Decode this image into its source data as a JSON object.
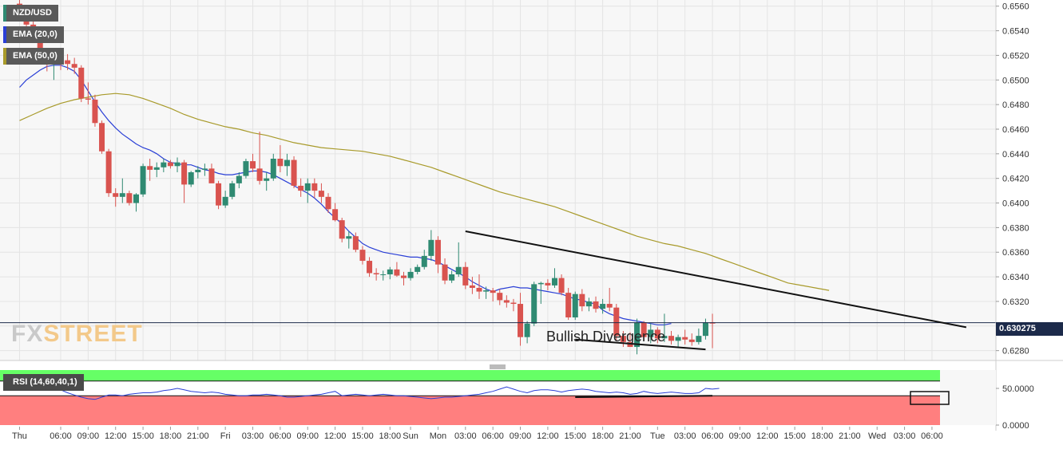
{
  "chart_data": {
    "type": "candlestick",
    "symbol": "NZD/USD",
    "indicators": [
      "EMA (20,0)",
      "EMA (50,0)"
    ],
    "colors": {
      "up": "#2f8a72",
      "down": "#d9534f",
      "ema20": "#2a3fd6",
      "ema50": "#a89a2a",
      "price_line": "#1c2a4a",
      "rsi_overbought_zone": "#66ff66",
      "rsi_oversold_zone": "#ff7f7f",
      "rsi_line": "#2a3fd6"
    },
    "y_axis": {
      "ticks": [
        "0.6560",
        "0.6540",
        "0.6520",
        "0.6500",
        "0.6480",
        "0.6460",
        "0.6440",
        "0.6420",
        "0.6400",
        "0.6380",
        "0.6360",
        "0.6340",
        "0.6320",
        "0.6300",
        "0.6280"
      ],
      "range": [
        0.6272,
        0.6565
      ]
    },
    "x_axis": {
      "labels": [
        "Thu",
        "06:00",
        "09:00",
        "12:00",
        "15:00",
        "18:00",
        "21:00",
        "Fri",
        "03:00",
        "06:00",
        "09:00",
        "12:00",
        "15:00",
        "18:00",
        "Sun",
        "Mon",
        "03:00",
        "06:00",
        "09:00",
        "12:00",
        "15:00",
        "18:00",
        "21:00",
        "Tue",
        "03:00",
        "06:00",
        "09:00",
        "12:00",
        "15:00",
        "18:00",
        "21:00",
        "Wed",
        "03:00",
        "06:00"
      ],
      "bar_index": [
        -6,
        0,
        4,
        8,
        12,
        16,
        20,
        24,
        28,
        32,
        36,
        40,
        44,
        48,
        51,
        55,
        59,
        63,
        67,
        71,
        75,
        79,
        83,
        87,
        91,
        95,
        99,
        103,
        107,
        111,
        115,
        119,
        123,
        127
      ]
    },
    "candles": [
      [
        0.6562,
        0.6566,
        0.6548,
        0.6552
      ],
      [
        0.6552,
        0.6558,
        0.654,
        0.6545
      ],
      [
        0.6545,
        0.655,
        0.653,
        0.6536
      ],
      [
        0.6536,
        0.654,
        0.6515,
        0.652
      ],
      [
        0.652,
        0.6525,
        0.6507,
        0.6515
      ],
      [
        0.6515,
        0.652,
        0.65,
        0.6517
      ],
      [
        0.6517,
        0.6522,
        0.6508,
        0.6516
      ],
      [
        0.6516,
        0.6521,
        0.6508,
        0.6513
      ],
      [
        0.6513,
        0.6518,
        0.6505,
        0.651
      ],
      [
        0.651,
        0.6512,
        0.6482,
        0.6485
      ],
      [
        0.6485,
        0.6498,
        0.648,
        0.6484
      ],
      [
        0.6484,
        0.6488,
        0.6462,
        0.6465
      ],
      [
        0.6465,
        0.6467,
        0.644,
        0.6442
      ],
      [
        0.6442,
        0.6444,
        0.6405,
        0.6408
      ],
      [
        0.6408,
        0.6412,
        0.6397,
        0.6405
      ],
      [
        0.6405,
        0.642,
        0.64,
        0.6408
      ],
      [
        0.6408,
        0.641,
        0.6398,
        0.64
      ],
      [
        0.64,
        0.6408,
        0.6393,
        0.6407
      ],
      [
        0.6407,
        0.6432,
        0.6405,
        0.643
      ],
      [
        0.643,
        0.6436,
        0.6418,
        0.6427
      ],
      [
        0.6427,
        0.6433,
        0.6421,
        0.6429
      ],
      [
        0.6429,
        0.6436,
        0.6425,
        0.6433
      ],
      [
        0.6433,
        0.6435,
        0.6428,
        0.643
      ],
      [
        0.643,
        0.6437,
        0.6425,
        0.6433
      ],
      [
        0.6433,
        0.6435,
        0.64,
        0.6415
      ],
      [
        0.6415,
        0.6426,
        0.6413,
        0.6425
      ],
      [
        0.6425,
        0.643,
        0.642,
        0.6427
      ],
      [
        0.6427,
        0.6432,
        0.6422,
        0.6428
      ],
      [
        0.6428,
        0.6432,
        0.6418,
        0.6416
      ],
      [
        0.6416,
        0.6418,
        0.6395,
        0.6398
      ],
      [
        0.6398,
        0.641,
        0.6396,
        0.6405
      ],
      [
        0.6405,
        0.6418,
        0.6403,
        0.6416
      ],
      [
        0.6416,
        0.6425,
        0.6412,
        0.6422
      ],
      [
        0.6422,
        0.6436,
        0.642,
        0.6434
      ],
      [
        0.6434,
        0.644,
        0.6425,
        0.6428
      ],
      [
        0.6428,
        0.6458,
        0.6415,
        0.6418
      ],
      [
        0.6418,
        0.6425,
        0.641,
        0.642
      ],
      [
        0.642,
        0.644,
        0.6418,
        0.6436
      ],
      [
        0.6436,
        0.6447,
        0.6425,
        0.643
      ],
      [
        0.643,
        0.644,
        0.6422,
        0.6435
      ],
      [
        0.6435,
        0.6438,
        0.6412,
        0.6414
      ],
      [
        0.6414,
        0.642,
        0.6405,
        0.641
      ],
      [
        0.641,
        0.642,
        0.64,
        0.6416
      ],
      [
        0.6416,
        0.642,
        0.6404,
        0.641
      ],
      [
        0.641,
        0.6416,
        0.64,
        0.6405
      ],
      [
        0.6405,
        0.6408,
        0.6392,
        0.6395
      ],
      [
        0.6395,
        0.64,
        0.6385,
        0.6386
      ],
      [
        0.6386,
        0.6388,
        0.6368,
        0.6371
      ],
      [
        0.6371,
        0.6377,
        0.6363,
        0.6373
      ],
      [
        0.6373,
        0.6376,
        0.636,
        0.6362
      ],
      [
        0.6362,
        0.6365,
        0.635,
        0.6353
      ],
      [
        0.6353,
        0.6356,
        0.634,
        0.6343
      ],
      [
        0.6343,
        0.6347,
        0.6337,
        0.6342
      ],
      [
        0.6342,
        0.6345,
        0.6337,
        0.6342
      ],
      [
        0.6342,
        0.6348,
        0.6338,
        0.6346
      ],
      [
        0.6346,
        0.6352,
        0.634,
        0.6341
      ],
      [
        0.6341,
        0.6344,
        0.6333,
        0.6339
      ],
      [
        0.6339,
        0.6347,
        0.6337,
        0.6344
      ],
      [
        0.6344,
        0.635,
        0.6342,
        0.6348
      ],
      [
        0.6348,
        0.6362,
        0.6346,
        0.6357
      ],
      [
        0.6357,
        0.6378,
        0.6353,
        0.637
      ],
      [
        0.637,
        0.6373,
        0.6343,
        0.635
      ],
      [
        0.635,
        0.6355,
        0.6334,
        0.6337
      ],
      [
        0.6337,
        0.6345,
        0.6335,
        0.6342
      ],
      [
        0.6342,
        0.6368,
        0.634,
        0.6348
      ],
      [
        0.6348,
        0.6352,
        0.633,
        0.6333
      ],
      [
        0.6333,
        0.634,
        0.6326,
        0.6331
      ],
      [
        0.6331,
        0.6342,
        0.6322,
        0.6328
      ],
      [
        0.6328,
        0.6332,
        0.6322,
        0.6329
      ],
      [
        0.6329,
        0.6331,
        0.632,
        0.6327
      ],
      [
        0.6327,
        0.633,
        0.6317,
        0.6321
      ],
      [
        0.6321,
        0.6325,
        0.6315,
        0.6319
      ],
      [
        0.6319,
        0.6322,
        0.6312,
        0.6318
      ],
      [
        0.6318,
        0.6327,
        0.6284,
        0.6291
      ],
      [
        0.6291,
        0.6304,
        0.6286,
        0.6302
      ],
      [
        0.6302,
        0.6336,
        0.63,
        0.6334
      ],
      [
        0.6334,
        0.6336,
        0.6318,
        0.6335
      ],
      [
        0.6335,
        0.6338,
        0.6329,
        0.6333
      ],
      [
        0.6333,
        0.6347,
        0.6331,
        0.6339
      ],
      [
        0.6339,
        0.6342,
        0.6325,
        0.6327
      ],
      [
        0.6327,
        0.6331,
        0.6305,
        0.6307
      ],
      [
        0.6307,
        0.6328,
        0.6305,
        0.6326
      ],
      [
        0.6326,
        0.633,
        0.6312,
        0.6316
      ],
      [
        0.6316,
        0.6323,
        0.6312,
        0.632
      ],
      [
        0.632,
        0.6324,
        0.6311,
        0.6314
      ],
      [
        0.6314,
        0.6322,
        0.631,
        0.6318
      ],
      [
        0.6318,
        0.6331,
        0.6312,
        0.6315
      ],
      [
        0.6315,
        0.6318,
        0.6288,
        0.6292
      ],
      [
        0.6292,
        0.6296,
        0.6283,
        0.6287
      ],
      [
        0.6287,
        0.6295,
        0.6283,
        0.6283
      ],
      [
        0.6283,
        0.6306,
        0.6277,
        0.6303
      ],
      [
        0.6303,
        0.6304,
        0.6288,
        0.6291
      ],
      [
        0.6291,
        0.6302,
        0.6286,
        0.6297
      ],
      [
        0.6297,
        0.6299,
        0.6286,
        0.629
      ],
      [
        0.629,
        0.631,
        0.6287,
        0.6292
      ],
      [
        0.6292,
        0.6296,
        0.6285,
        0.6288
      ],
      [
        0.6288,
        0.6293,
        0.6283,
        0.6291
      ],
      [
        0.6291,
        0.6297,
        0.6285,
        0.6289
      ],
      [
        0.6289,
        0.6294,
        0.6284,
        0.6287
      ],
      [
        0.6287,
        0.6298,
        0.6285,
        0.6292
      ],
      [
        0.6292,
        0.6306,
        0.6289,
        0.6303
      ],
      [
        0.6303,
        0.631,
        0.6282,
        0.6302
      ]
    ],
    "candle_index_start": -6,
    "ema20": [
      0.6494,
      0.65,
      0.6504,
      0.6508,
      0.6511,
      0.6512,
      0.6512,
      0.651,
      0.6507,
      0.65,
      0.6491,
      0.6482,
      0.6474,
      0.6467,
      0.6461,
      0.6456,
      0.6452,
      0.6448,
      0.6445,
      0.6443,
      0.644,
      0.6436,
      0.6433,
      0.6432,
      0.6431,
      0.6431,
      0.6429,
      0.6427,
      0.6426,
      0.6424,
      0.6423,
      0.6423,
      0.6424,
      0.6425,
      0.6426,
      0.6426,
      0.6425,
      0.6423,
      0.642,
      0.6417,
      0.6414,
      0.6411,
      0.6408,
      0.6404,
      0.6399,
      0.6393,
      0.6388,
      0.6383,
      0.6377,
      0.6372,
      0.6367,
      0.6364,
      0.6362,
      0.636,
      0.6359,
      0.6358,
      0.6357,
      0.6356,
      0.6356,
      0.6355,
      0.6354,
      0.6352,
      0.6349,
      0.6346,
      0.6343,
      0.634,
      0.6336,
      0.6333,
      0.633,
      0.6328,
      0.633,
      0.6331,
      0.6332,
      0.6331,
      0.6331,
      0.633,
      0.6329,
      0.6328,
      0.6327,
      0.6326,
      0.6324,
      0.6322,
      0.6321,
      0.6319,
      0.6318,
      0.6313,
      0.631,
      0.6308,
      0.6306,
      0.6305,
      0.6304,
      0.6303,
      0.6302,
      0.6301,
      0.6301,
      0.6302
    ],
    "ema20_index_start": -6,
    "ema50": [
      0.6467,
      0.6472,
      0.6477,
      0.6481,
      0.6484,
      0.6486,
      0.6488,
      0.6489,
      0.6488,
      0.6485,
      0.6481,
      0.6477,
      0.6472,
      0.6468,
      0.6465,
      0.6462,
      0.646,
      0.6457,
      0.6455,
      0.6452,
      0.6449,
      0.6447,
      0.6445,
      0.6444,
      0.6443,
      0.6442,
      0.644,
      0.6438,
      0.6435,
      0.6432,
      0.6429,
      0.6425,
      0.6421,
      0.6417,
      0.6413,
      0.6409,
      0.6406,
      0.6403,
      0.64,
      0.6397,
      0.6393,
      0.6389,
      0.6385,
      0.6381,
      0.6377,
      0.6373,
      0.637,
      0.6367,
      0.6365,
      0.6362,
      0.6359,
      0.6355,
      0.6351,
      0.6347,
      0.6343,
      0.6339,
      0.6335,
      0.6333,
      0.6331,
      0.6329
    ],
    "ema50_index_start": -6,
    "ema50_index_step": 2,
    "current_price": "0.630275",
    "annotation": "Bullish Divergence",
    "trendlines": [
      {
        "name": "descending-resistance",
        "points": [
          [
            59,
            0.6377
          ],
          [
            132,
            0.6299
          ]
        ]
      },
      {
        "name": "price-lower-low",
        "points": [
          [
            75,
            0.6289
          ],
          [
            94,
            0.6281
          ]
        ]
      }
    ],
    "rsi": {
      "label": "RSI (14,60,40,1)",
      "ticks": [
        "50.0000",
        "0.0000"
      ],
      "range": [
        0,
        75
      ],
      "overbought_level": 60,
      "oversold_level": 40,
      "values": [
        62,
        58,
        55,
        55,
        54,
        54,
        48,
        44,
        41,
        38,
        36,
        35,
        38,
        41,
        41,
        40,
        42,
        43,
        44,
        44,
        45,
        47,
        48,
        50,
        48,
        46,
        45,
        44,
        45,
        44,
        42,
        41,
        40,
        40,
        41,
        41,
        42,
        41,
        40,
        38,
        38,
        39,
        40,
        41,
        42,
        44,
        46,
        40,
        41,
        42,
        41,
        40,
        41,
        42,
        41,
        40,
        40,
        39,
        38,
        37,
        36,
        37,
        38,
        38,
        39,
        40,
        41,
        42,
        44,
        46,
        49,
        52,
        49,
        46,
        44,
        47,
        48,
        48,
        47,
        45,
        47,
        48,
        49,
        48,
        46,
        45,
        44,
        45,
        44,
        42,
        43,
        46,
        44,
        43,
        44,
        45,
        44,
        43,
        43,
        44,
        50,
        49,
        50
      ],
      "values_index_start": -6,
      "divergence_line": {
        "points": [
          [
            75,
            38
          ],
          [
            95,
            40
          ]
        ]
      }
    }
  }
}
